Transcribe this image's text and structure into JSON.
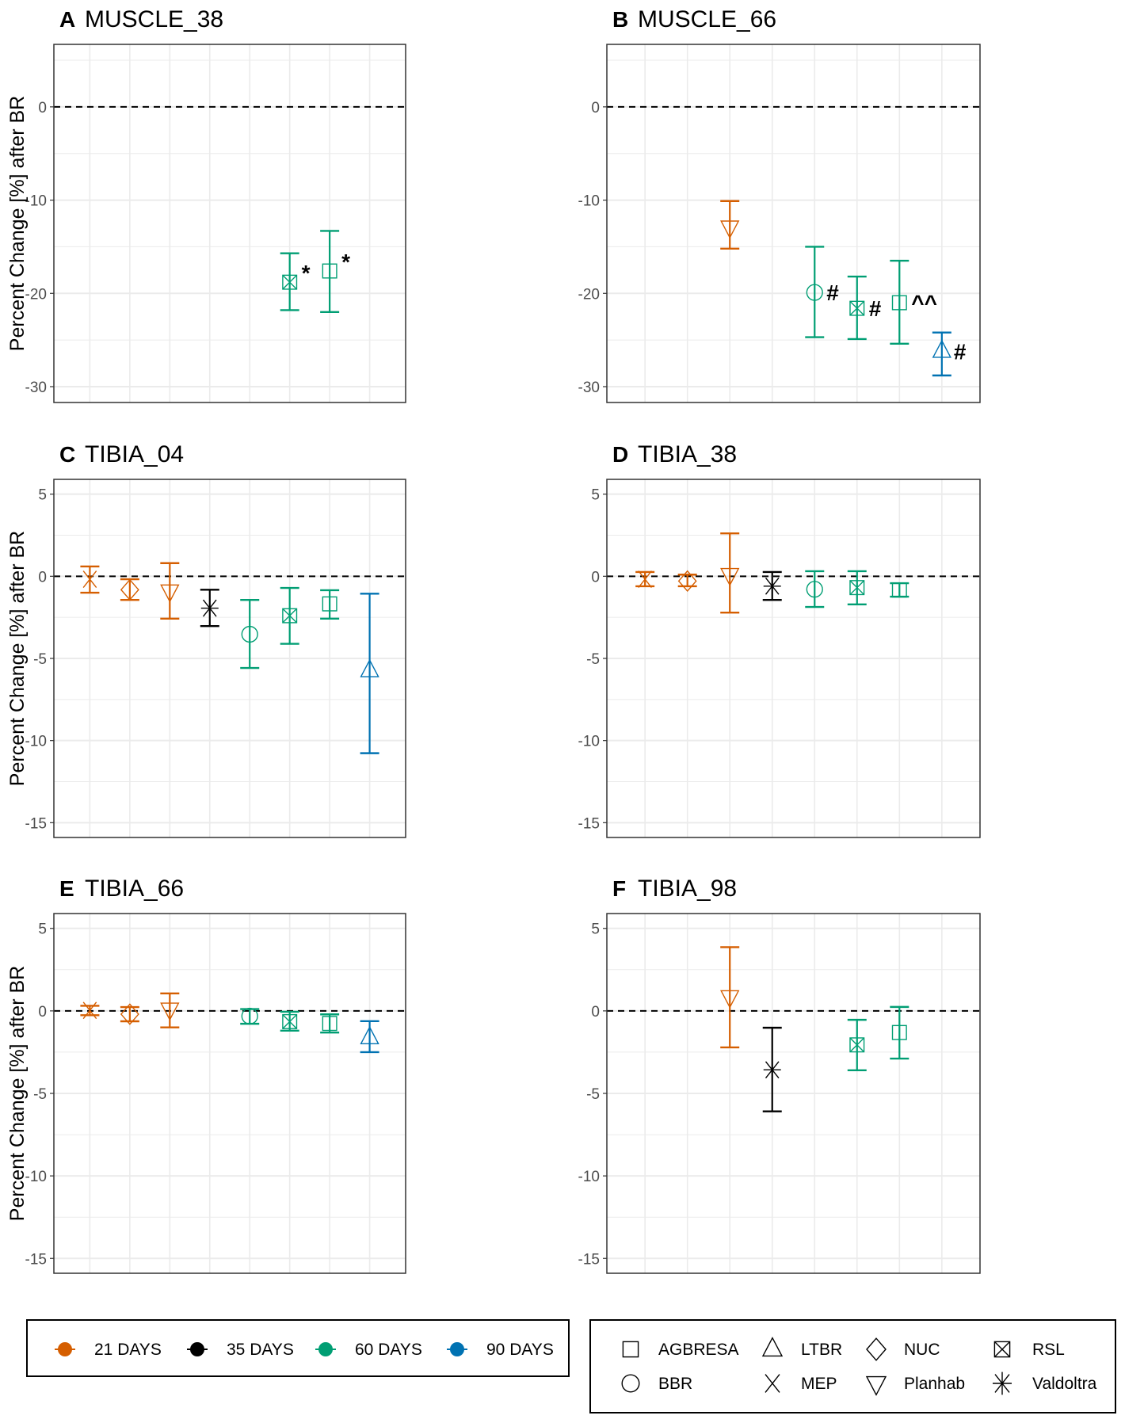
{
  "chart_data": {
    "type": "scatter",
    "y_axis_title": "Percent Change [%] after BR",
    "reference_line": 0,
    "grid": true,
    "colors": {
      "21 DAYS": "#D55E00",
      "35 DAYS": "#000000",
      "60 DAYS": "#009E73",
      "90 DAYS": "#0072B2"
    },
    "panels": [
      {
        "letter": "A",
        "title": "MUSCLE_38",
        "ylim": [
          -31.7,
          6.7
        ],
        "yticks": [
          0,
          -10,
          -20,
          -30
        ],
        "points": [
          {
            "group": "RSL",
            "duration": "60 DAYS",
            "mean": -18.8,
            "lower": -21.8,
            "upper": -15.7,
            "annotation": "*"
          },
          {
            "group": "AGBRESA",
            "duration": "60 DAYS",
            "mean": -17.6,
            "lower": -22.0,
            "upper": -13.3,
            "annotation": "*"
          }
        ]
      },
      {
        "letter": "B",
        "title": "MUSCLE_66",
        "ylim": [
          -31.7,
          6.7
        ],
        "yticks": [
          0,
          -10,
          -20,
          -30
        ],
        "points": [
          {
            "group": "Planhab",
            "duration": "21 DAYS",
            "mean": -12.9,
            "lower": -15.2,
            "upper": -10.1,
            "annotation": ""
          },
          {
            "group": "BBR",
            "duration": "60 DAYS",
            "mean": -19.9,
            "lower": -24.7,
            "upper": -15.0,
            "annotation": "#"
          },
          {
            "group": "RSL",
            "duration": "60 DAYS",
            "mean": -21.6,
            "lower": -24.9,
            "upper": -18.2,
            "annotation": "#"
          },
          {
            "group": "AGBRESA",
            "duration": "60 DAYS",
            "mean": -21.0,
            "lower": -25.4,
            "upper": -16.5,
            "annotation": "^^"
          },
          {
            "group": "LTBR",
            "duration": "90 DAYS",
            "mean": -26.2,
            "lower": -28.8,
            "upper": -24.2,
            "annotation": "#"
          }
        ]
      },
      {
        "letter": "C",
        "title": "TIBIA_04",
        "ylim": [
          -15.9,
          5.9
        ],
        "yticks": [
          5,
          0,
          -5,
          -10,
          -15
        ],
        "points": [
          {
            "group": "MEP",
            "duration": "21 DAYS",
            "mean": -0.18,
            "lower": -1.0,
            "upper": 0.6,
            "annotation": ""
          },
          {
            "group": "NUC",
            "duration": "21 DAYS",
            "mean": -0.82,
            "lower": -1.44,
            "upper": -0.18,
            "annotation": ""
          },
          {
            "group": "Planhab",
            "duration": "21 DAYS",
            "mean": -0.9,
            "lower": -2.58,
            "upper": 0.8,
            "annotation": ""
          },
          {
            "group": "Valdoltra",
            "duration": "35 DAYS",
            "mean": -1.94,
            "lower": -3.03,
            "upper": -0.82,
            "annotation": ""
          },
          {
            "group": "BBR",
            "duration": "60 DAYS",
            "mean": -3.53,
            "lower": -5.58,
            "upper": -1.44,
            "annotation": ""
          },
          {
            "group": "RSL",
            "duration": "60 DAYS",
            "mean": -2.4,
            "lower": -4.11,
            "upper": -0.71,
            "annotation": ""
          },
          {
            "group": "AGBRESA",
            "duration": "60 DAYS",
            "mean": -1.68,
            "lower": -2.58,
            "upper": -0.85,
            "annotation": ""
          },
          {
            "group": "LTBR",
            "duration": "90 DAYS",
            "mean": -5.74,
            "lower": -10.77,
            "upper": -1.06,
            "annotation": ""
          }
        ]
      },
      {
        "letter": "D",
        "title": "TIBIA_38",
        "ylim": [
          -15.9,
          5.9
        ],
        "yticks": [
          5,
          0,
          -5,
          -10,
          -15
        ],
        "points": [
          {
            "group": "MEP",
            "duration": "21 DAYS",
            "mean": -0.18,
            "lower": -0.61,
            "upper": 0.26,
            "annotation": ""
          },
          {
            "group": "NUC",
            "duration": "21 DAYS",
            "mean": -0.29,
            "lower": -0.61,
            "upper": 0.1,
            "annotation": ""
          },
          {
            "group": "Planhab",
            "duration": "21 DAYS",
            "mean": 0.1,
            "lower": -2.21,
            "upper": 2.61,
            "annotation": ""
          },
          {
            "group": "Valdoltra",
            "duration": "35 DAYS",
            "mean": -0.6,
            "lower": -1.44,
            "upper": 0.26,
            "annotation": ""
          },
          {
            "group": "BBR",
            "duration": "60 DAYS",
            "mean": -0.79,
            "lower": -1.87,
            "upper": 0.31,
            "annotation": ""
          },
          {
            "group": "RSL",
            "duration": "60 DAYS",
            "mean": -0.69,
            "lower": -1.71,
            "upper": 0.31,
            "annotation": ""
          },
          {
            "group": "AGBRESA",
            "duration": "60 DAYS",
            "mean": -0.84,
            "lower": -1.24,
            "upper": -0.42,
            "annotation": ""
          }
        ]
      },
      {
        "letter": "E",
        "title": "TIBIA_66",
        "ylim": [
          -15.9,
          5.9
        ],
        "yticks": [
          5,
          0,
          -5,
          -10,
          -15
        ],
        "points": [
          {
            "group": "MEP",
            "duration": "21 DAYS",
            "mean": 0.03,
            "lower": -0.26,
            "upper": 0.31,
            "annotation": ""
          },
          {
            "group": "NUC",
            "duration": "21 DAYS",
            "mean": -0.2,
            "lower": -0.63,
            "upper": 0.23,
            "annotation": ""
          },
          {
            "group": "Planhab",
            "duration": "21 DAYS",
            "mean": 0.1,
            "lower": -1.0,
            "upper": 1.06,
            "annotation": ""
          },
          {
            "group": "BBR",
            "duration": "60 DAYS",
            "mean": -0.32,
            "lower": -0.78,
            "upper": 0.11,
            "annotation": ""
          },
          {
            "group": "RSL",
            "duration": "60 DAYS",
            "mean": -0.65,
            "lower": -1.2,
            "upper": -0.05,
            "annotation": ""
          },
          {
            "group": "AGBRESA",
            "duration": "60 DAYS",
            "mean": -0.76,
            "lower": -1.31,
            "upper": -0.21,
            "annotation": ""
          },
          {
            "group": "LTBR",
            "duration": "90 DAYS",
            "mean": -1.62,
            "lower": -2.5,
            "upper": -0.62,
            "annotation": ""
          }
        ]
      },
      {
        "letter": "F",
        "title": "TIBIA_98",
        "ylim": [
          -15.9,
          5.9
        ],
        "yticks": [
          5,
          0,
          -5,
          -10,
          -15
        ],
        "points": [
          {
            "group": "Planhab",
            "duration": "21 DAYS",
            "mean": 0.85,
            "lower": -2.21,
            "upper": 3.86,
            "annotation": ""
          },
          {
            "group": "Valdoltra",
            "duration": "35 DAYS",
            "mean": -3.57,
            "lower": -6.09,
            "upper": -1.02,
            "annotation": ""
          },
          {
            "group": "RSL",
            "duration": "60 DAYS",
            "mean": -2.06,
            "lower": -3.6,
            "upper": -0.54,
            "annotation": ""
          },
          {
            "group": "AGBRESA",
            "duration": "60 DAYS",
            "mean": -1.31,
            "lower": -2.89,
            "upper": 0.24,
            "annotation": ""
          }
        ]
      }
    ],
    "legend_duration": [
      "21 DAYS",
      "35 DAYS",
      "60 DAYS",
      "90 DAYS"
    ],
    "legend_group": [
      {
        "label": "AGBRESA",
        "shape": "square"
      },
      {
        "label": "LTBR",
        "shape": "triangle-up"
      },
      {
        "label": "NUC",
        "shape": "diamond"
      },
      {
        "label": "RSL",
        "shape": "square-cross"
      },
      {
        "label": "BBR",
        "shape": "circle"
      },
      {
        "label": "MEP",
        "shape": "cross"
      },
      {
        "label": "Planhab",
        "shape": "triangle-down"
      },
      {
        "label": "Valdoltra",
        "shape": "asterisk"
      }
    ],
    "legend_position": "bottom"
  }
}
